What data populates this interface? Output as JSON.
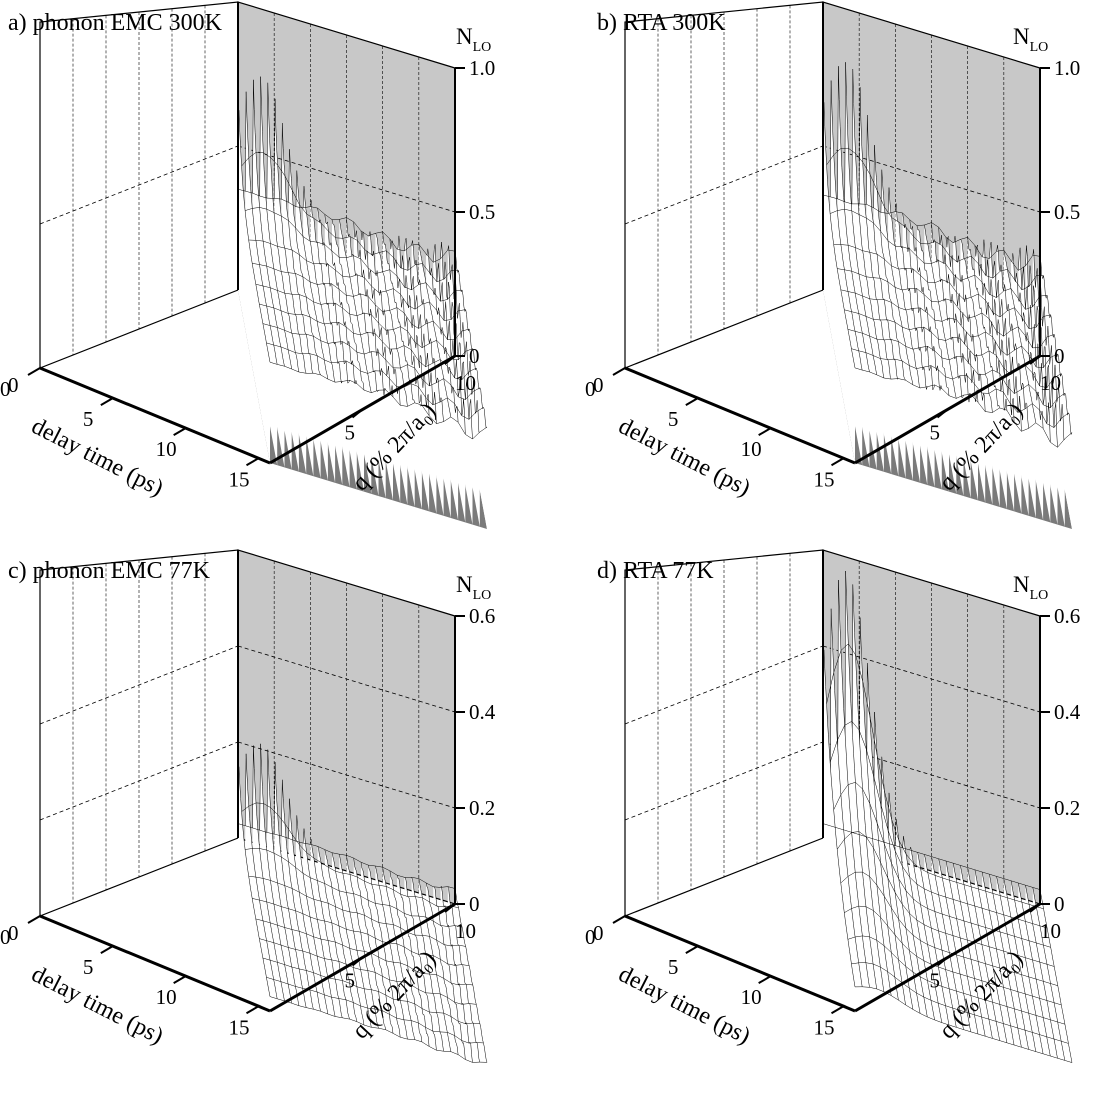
{
  "figure": {
    "nlo_main": "N",
    "nlo_sub": "LO",
    "delay_label": "delay time (ps)",
    "q_label": "q (% 2π/a₀)",
    "colors": {
      "back_wall": "#c8c8c8",
      "floor": "#7a7a7a",
      "mesh": "#000000",
      "surface": "#ffffff"
    }
  },
  "chart_data": [
    {
      "type": "surface",
      "title": "a) phonon EMC 300K",
      "zlabel": "NLO",
      "xlabel": "delay time (ps)",
      "ylabel": "q (% 2π/a₀)",
      "xlim": [
        0,
        18
      ],
      "ylim": [
        0,
        10
      ],
      "zlim": [
        0,
        1.0
      ],
      "x_ticks": [
        "0",
        "5",
        "10",
        "15"
      ],
      "y_ticks": [
        "5",
        "10"
      ],
      "z_ticks": [
        "0",
        "0.5",
        "1.0"
      ],
      "peak": {
        "delay_ps": 0.5,
        "q": 1.0,
        "NLO": 0.78
      },
      "baseline_NLO": 0.35,
      "noise": 0.06,
      "floor_full": true
    },
    {
      "type": "surface",
      "title": "b) RTA 300K",
      "zlabel": "NLO",
      "xlabel": "delay time (ps)",
      "ylabel": "q (% 2π/a₀)",
      "xlim": [
        0,
        18
      ],
      "ylim": [
        0,
        10
      ],
      "zlim": [
        0,
        1.0
      ],
      "x_ticks": [
        "0",
        "5",
        "10",
        "15"
      ],
      "y_ticks": [
        "5",
        "10"
      ],
      "z_ticks": [
        "0",
        "0.5",
        "1.0"
      ],
      "peak": {
        "delay_ps": 0.5,
        "q": 1.0,
        "NLO": 0.83
      },
      "baseline_NLO": 0.33,
      "noise": 0.07,
      "floor_full": true
    },
    {
      "type": "surface",
      "title": "c) phonon EMC 77K",
      "zlabel": "NLO",
      "xlabel": "delay time (ps)",
      "ylabel": "q (% 2π/a₀)",
      "xlim": [
        0,
        18
      ],
      "ylim": [
        0,
        10
      ],
      "zlim": [
        0,
        0.6
      ],
      "x_ticks": [
        "0",
        "5",
        "10",
        "15"
      ],
      "y_ticks": [
        "5",
        "10"
      ],
      "z_ticks": [
        "0",
        "0.2",
        "0.4",
        "0.6"
      ],
      "peak": {
        "delay_ps": 0.5,
        "q": 1.0,
        "NLO": 0.22
      },
      "baseline_NLO": 0.03,
      "noise": 0.01,
      "floor_full": false
    },
    {
      "type": "surface",
      "title": "d) RTA 77K",
      "zlabel": "NLO",
      "xlabel": "delay time (ps)",
      "ylabel": "q (% 2π/a₀)",
      "xlim": [
        0,
        18
      ],
      "ylim": [
        0,
        10
      ],
      "zlim": [
        0,
        0.6
      ],
      "x_ticks": [
        "0",
        "5",
        "10",
        "15"
      ],
      "y_ticks": [
        "5",
        "10"
      ],
      "z_ticks": [
        "0",
        "0.2",
        "0.4",
        "0.6"
      ],
      "peak": {
        "delay_ps": 0.5,
        "q": 1.0,
        "NLO": 0.58
      },
      "baseline_NLO": 0.03,
      "noise": 0.0,
      "floor_full": false
    }
  ]
}
